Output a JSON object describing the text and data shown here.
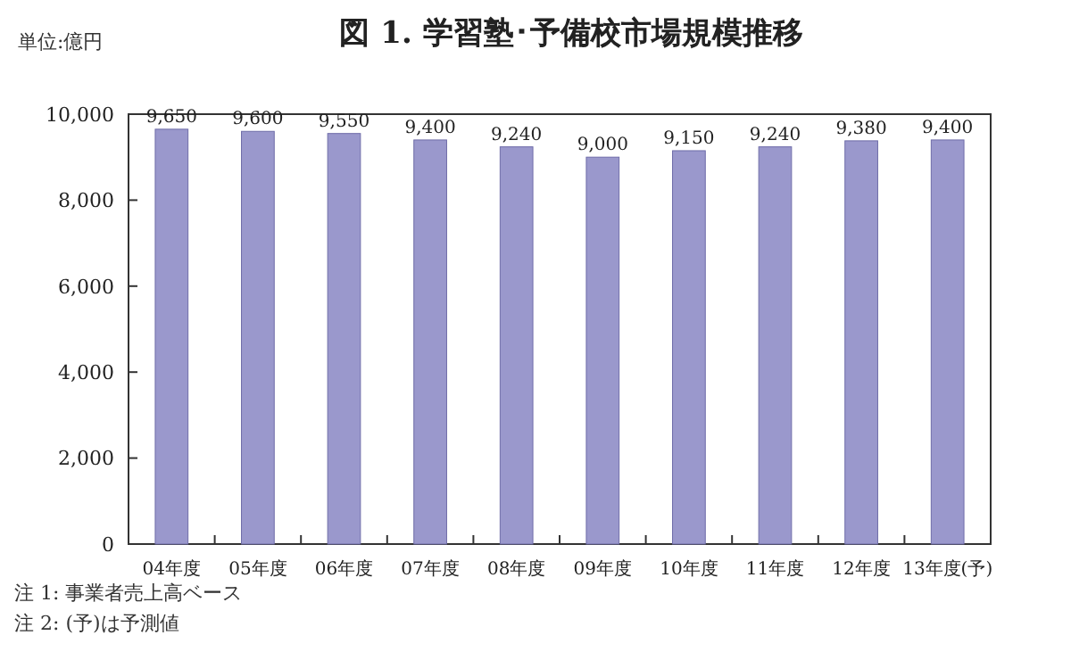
{
  "chart_data": {
    "type": "bar",
    "title": "図 1.  学習塾･予備校市場規模推移",
    "categories": [
      "04年度",
      "05年度",
      "06年度",
      "07年度",
      "08年度",
      "09年度",
      "10年度",
      "11年度",
      "12年度",
      "13年度(予)"
    ],
    "values": [
      9650,
      9600,
      9550,
      9400,
      9240,
      9000,
      9150,
      9240,
      9380,
      9400
    ],
    "color": "#9a98cc",
    "ylim": [
      0,
      10000
    ],
    "yticks": [
      0,
      {
        "value": 2000,
        "label": "2,000"
      },
      {
        "value": 4000,
        "label": "4,000"
      },
      {
        "value": 6000,
        "label": "6,000"
      },
      {
        "value": 8000,
        "label": "8,000"
      },
      {
        "value": 10000,
        "label": "10,000"
      }
    ],
    "value_labels": [
      "9,650",
      "9,600",
      "9,550",
      "9,400",
      "9,240",
      "9,000",
      "9,150",
      "9,240",
      "9,380",
      "9,400"
    ],
    "grid": false,
    "annotations": [
      "単位:億円",
      "注 1:  事業者売上高ベース",
      "注 2:  (予)は予測値"
    ]
  }
}
